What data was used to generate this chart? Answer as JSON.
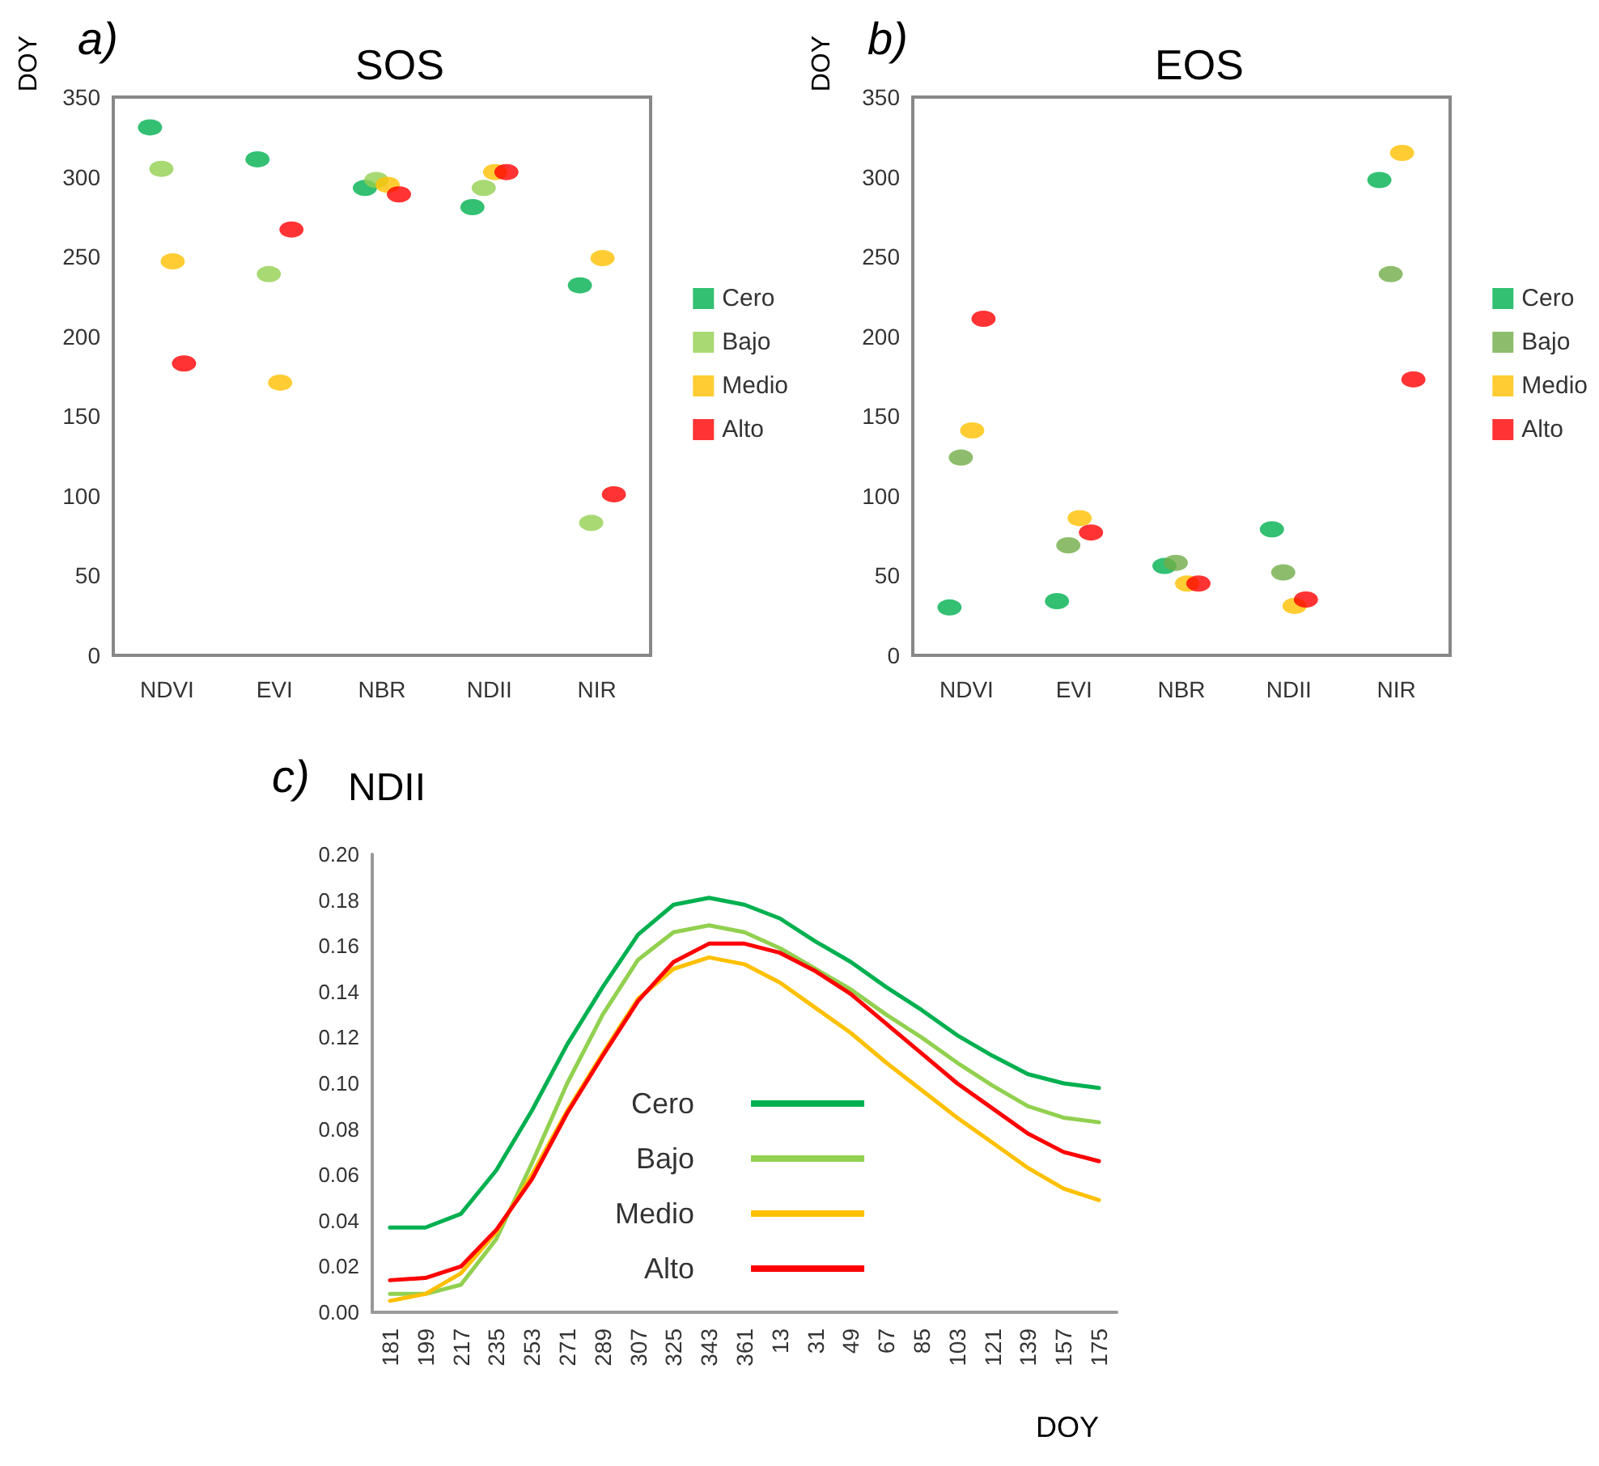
{
  "chart_data": [
    {
      "type": "scatter",
      "title": "SOS",
      "ylabel": "DOY",
      "annotations": [
        "a)"
      ],
      "categories": [
        "NDVI",
        "EVI",
        "NBR",
        "NDII",
        "NIR"
      ],
      "ylim": [
        0,
        350
      ],
      "yticks": [
        0,
        50,
        100,
        150,
        200,
        250,
        300,
        350
      ],
      "grid": false,
      "legend": "right",
      "marker": "circle",
      "series": [
        {
          "name": "Cero",
          "color": "#00b050",
          "values": [
            331,
            311,
            293,
            281,
            232
          ]
        },
        {
          "name": "Bajo",
          "color": "#92d050",
          "values": [
            305,
            239,
            298,
            293,
            83
          ]
        },
        {
          "name": "Medio",
          "color": "#ffc000",
          "values": [
            247,
            171,
            295,
            303,
            249
          ]
        },
        {
          "name": "Alto",
          "color": "#ff0000",
          "values": [
            183,
            267,
            289,
            303,
            101
          ]
        }
      ]
    },
    {
      "type": "scatter",
      "title": "EOS",
      "ylabel": "DOY",
      "annotations": [
        "b)"
      ],
      "categories": [
        "NDVI",
        "EVI",
        "NBR",
        "NDII",
        "NIR"
      ],
      "ylim": [
        0,
        350
      ],
      "yticks": [
        0,
        50,
        100,
        150,
        200,
        250,
        300,
        350
      ],
      "grid": false,
      "legend": "right",
      "marker": "circle",
      "series": [
        {
          "name": "Cero",
          "color": "#00b050",
          "values": [
            30,
            34,
            56,
            79,
            298
          ]
        },
        {
          "name": "Bajo",
          "color": "#70ad47",
          "values": [
            124,
            69,
            58,
            52,
            239
          ]
        },
        {
          "name": "Medio",
          "color": "#ffc000",
          "values": [
            141,
            86,
            45,
            31,
            315
          ]
        },
        {
          "name": "Alto",
          "color": "#ff0000",
          "values": [
            211,
            77,
            45,
            35,
            173
          ]
        }
      ]
    },
    {
      "type": "line",
      "title": "NDII",
      "xlabel": "DOY",
      "annotations": [
        "c)"
      ],
      "categories": [
        "181",
        "199",
        "217",
        "235",
        "253",
        "271",
        "289",
        "307",
        "325",
        "343",
        "361",
        "13",
        "31",
        "49",
        "67",
        "85",
        "103",
        "121",
        "139",
        "157",
        "175"
      ],
      "ylim": [
        0,
        0.2
      ],
      "yticks": [
        {
          "value": 0,
          "label": "0.00"
        },
        {
          "value": 0.02,
          "label": "0.02"
        },
        {
          "value": 0.04,
          "label": "0.04"
        },
        {
          "value": 0.06,
          "label": "0.06"
        },
        {
          "value": 0.08,
          "label": "0.08"
        },
        {
          "value": 0.1,
          "label": "0.10"
        },
        {
          "value": 0.12,
          "label": "0.12"
        },
        {
          "value": 0.14,
          "label": "0.14"
        },
        {
          "value": 0.16,
          "label": "0.16"
        },
        {
          "value": 0.18,
          "label": "0.18"
        },
        {
          "value": 0.2,
          "label": "0.20"
        }
      ],
      "grid": false,
      "legend": "bottom",
      "marker": "none",
      "line_style": "solid",
      "series": [
        {
          "name": "Cero",
          "color": "#00b050",
          "values": [
            0.037,
            0.037,
            0.043,
            0.062,
            0.088,
            0.117,
            0.142,
            0.165,
            0.178,
            0.181,
            0.178,
            0.172,
            0.162,
            0.153,
            0.142,
            0.132,
            0.121,
            0.112,
            0.104,
            0.1,
            0.098
          ]
        },
        {
          "name": "Bajo",
          "color": "#92d050",
          "values": [
            0.008,
            0.008,
            0.012,
            0.032,
            0.065,
            0.1,
            0.13,
            0.154,
            0.166,
            0.169,
            0.166,
            0.159,
            0.15,
            0.141,
            0.13,
            0.12,
            0.109,
            0.099,
            0.09,
            0.085,
            0.083
          ]
        },
        {
          "name": "Medio",
          "color": "#ffc000",
          "values": [
            0.005,
            0.008,
            0.017,
            0.035,
            0.06,
            0.088,
            0.113,
            0.137,
            0.15,
            0.155,
            0.152,
            0.144,
            0.133,
            0.122,
            0.109,
            0.097,
            0.085,
            0.074,
            0.063,
            0.054,
            0.049
          ]
        },
        {
          "name": "Alto",
          "color": "#ff0000",
          "values": [
            0.014,
            0.015,
            0.02,
            0.036,
            0.058,
            0.087,
            0.112,
            0.136,
            0.153,
            0.161,
            0.161,
            0.157,
            0.149,
            0.139,
            0.126,
            0.113,
            0.1,
            0.089,
            0.078,
            0.07,
            0.066
          ]
        }
      ]
    }
  ]
}
